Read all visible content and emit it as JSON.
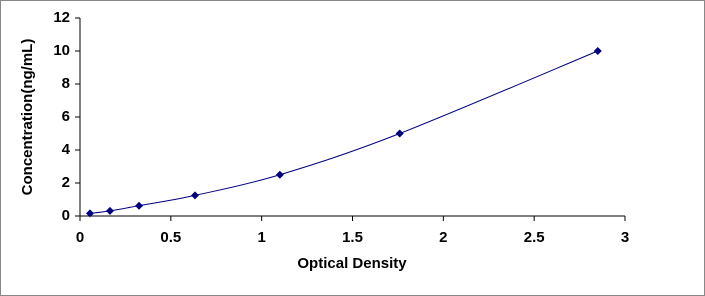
{
  "chart_data": {
    "type": "line",
    "markers": "diamond",
    "color": "#000080",
    "x_label": "Optical Density",
    "y_label": "Concentration(ng/mL)",
    "x": [
      0.055,
      0.165,
      0.325,
      0.633,
      1.1,
      1.76,
      2.85
    ],
    "values": [
      0.156,
      0.312,
      0.625,
      1.25,
      2.5,
      5,
      10
    ],
    "xlim": [
      0,
      3
    ],
    "xticks": [
      0,
      0.5,
      1,
      1.5,
      2,
      2.5,
      3
    ],
    "ylim": [
      0,
      12
    ],
    "yticks": [
      0,
      2,
      4,
      6,
      8,
      10,
      12
    ],
    "grid": false
  }
}
